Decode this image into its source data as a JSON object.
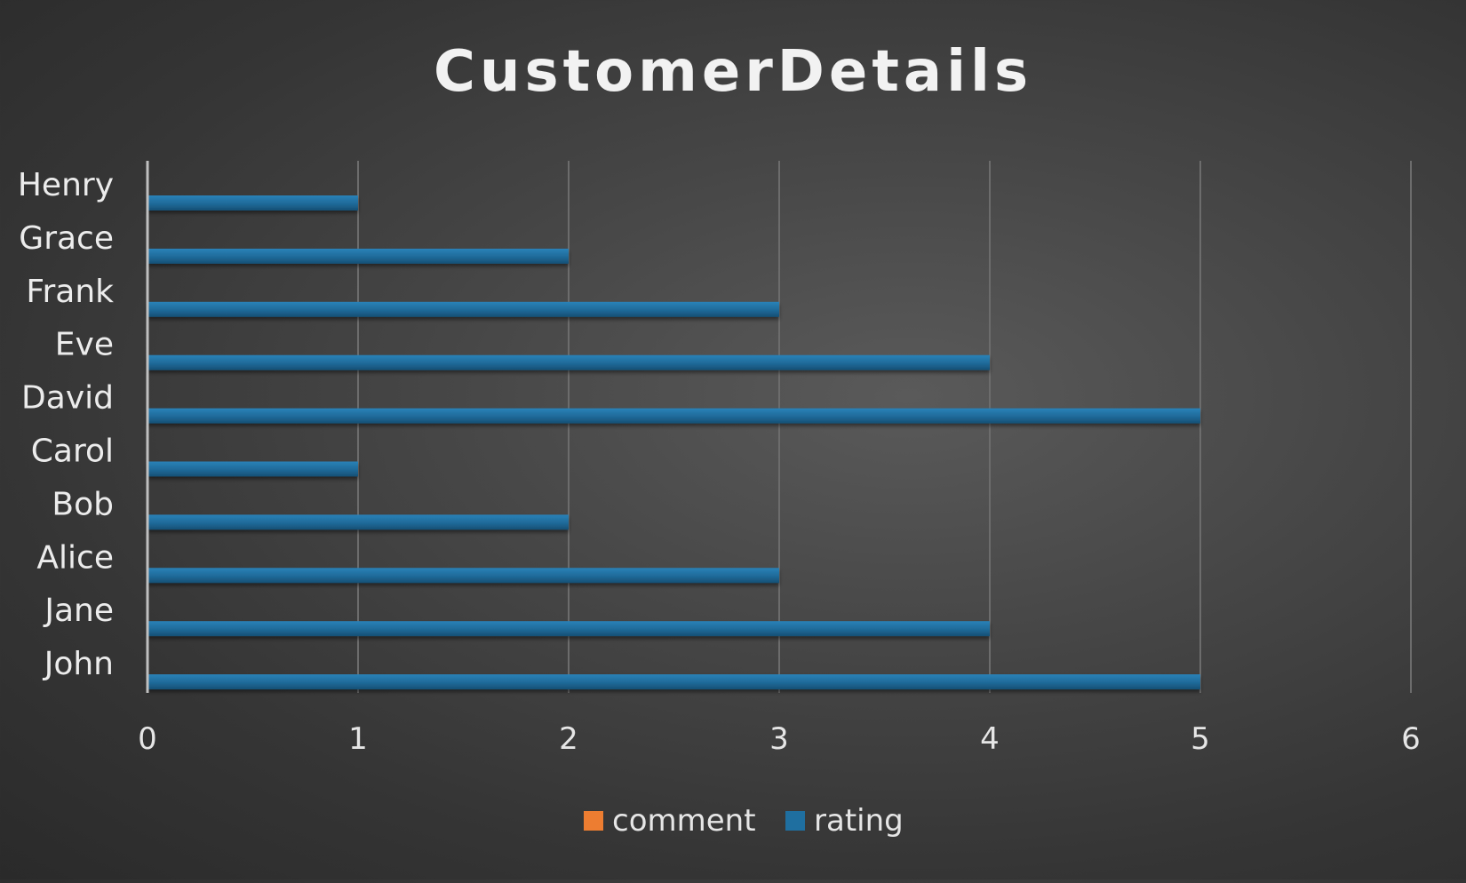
{
  "chart_data": {
    "type": "bar",
    "orientation": "horizontal",
    "title": "CustomerDetails",
    "categories": [
      "John",
      "Jane",
      "Alice",
      "Bob",
      "Carol",
      "David",
      "Eve",
      "Frank",
      "Grace",
      "Henry"
    ],
    "series": [
      {
        "name": "comment",
        "values": [
          0,
          0,
          0,
          0,
          0,
          0,
          0,
          0,
          0,
          0
        ],
        "color": "#ed7d31"
      },
      {
        "name": "rating",
        "values": [
          5,
          4,
          3,
          2,
          1,
          5,
          4,
          3,
          2,
          1
        ],
        "color": "#1f6fa0"
      }
    ],
    "xlim": [
      0,
      6
    ],
    "xticks": [
      "0",
      "1",
      "2",
      "3",
      "4",
      "5",
      "6"
    ],
    "grid": true,
    "legend": "bottom"
  }
}
